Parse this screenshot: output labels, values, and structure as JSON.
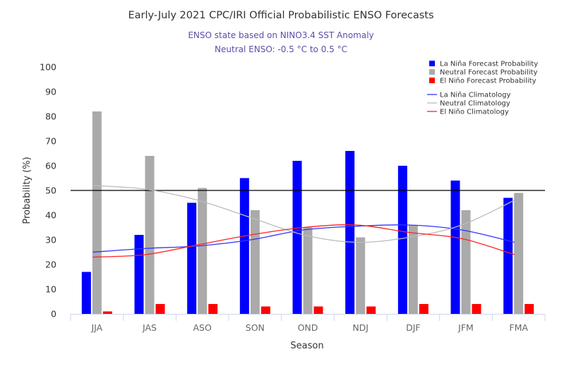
{
  "chart_data": {
    "type": "bar",
    "title": "Early-July 2021 CPC/IRI Official Probabilistic ENSO Forecasts",
    "subtitle_lines": [
      "ENSO state based on NINO3.4 SST Anomaly",
      "Neutral ENSO: -0.5 °C to 0.5 °C"
    ],
    "xlabel": "Season",
    "ylabel": "Probability (%)",
    "ylim": [
      0,
      100
    ],
    "yticks": [
      0,
      10,
      20,
      30,
      40,
      50,
      60,
      70,
      80,
      90,
      100
    ],
    "grid": false,
    "reference_line": 50,
    "legend_position": "top-right",
    "categories": [
      "JJA",
      "JAS",
      "ASO",
      "SON",
      "OND",
      "NDJ",
      "DJF",
      "JFM",
      "FMA"
    ],
    "series": [
      {
        "name": "La Niña Forecast Probability",
        "kind": "bar",
        "color": "#0000ff",
        "values": [
          17,
          32,
          45,
          55,
          62,
          66,
          60,
          54,
          47
        ]
      },
      {
        "name": "Neutral Forecast Probability",
        "kind": "bar",
        "color": "#aaaaaa",
        "values": [
          82,
          64,
          51,
          42,
          35,
          31,
          36,
          42,
          49
        ]
      },
      {
        "name": "El Niño Forecast Probability",
        "kind": "bar",
        "color": "#ff0000",
        "values": [
          1,
          4,
          4,
          3,
          3,
          3,
          4,
          4,
          4
        ]
      },
      {
        "name": "La Niña Climatology",
        "kind": "line",
        "color": "#3333ff",
        "values": [
          25,
          26.5,
          27.5,
          30,
          34,
          35.5,
          36,
          34,
          29
        ]
      },
      {
        "name": "Neutral Climatology",
        "kind": "line",
        "color": "#bbbbbb",
        "values": [
          52,
          50.5,
          46,
          39,
          32,
          29,
          31,
          36,
          46
        ]
      },
      {
        "name": "El Niño Climatology",
        "kind": "line",
        "color": "#ff2222",
        "values": [
          23,
          24,
          28,
          32,
          35,
          36,
          33,
          30.5,
          24
        ]
      }
    ]
  }
}
